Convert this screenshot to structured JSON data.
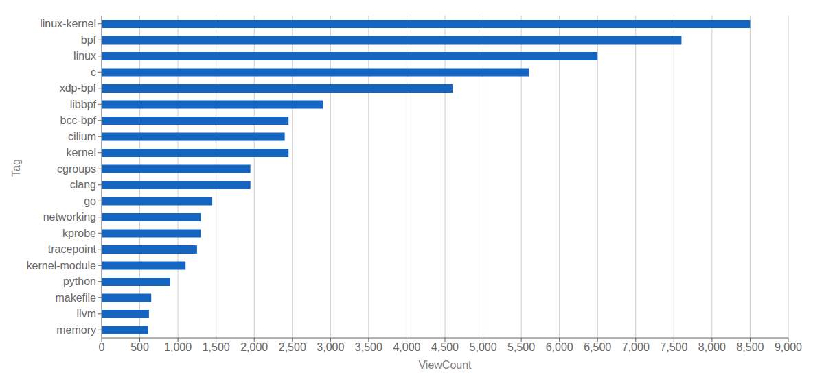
{
  "chart_data": {
    "type": "bar",
    "orientation": "horizontal",
    "categories": [
      "linux-kernel",
      "bpf",
      "linux",
      "c",
      "xdp-bpf",
      "libbpf",
      "bcc-bpf",
      "cilium",
      "kernel",
      "cgroups",
      "clang",
      "go",
      "networking",
      "kprobe",
      "tracepoint",
      "kernel-module",
      "python",
      "makefile",
      "llvm",
      "memory"
    ],
    "values": [
      8500,
      7600,
      6500,
      5600,
      4600,
      2900,
      2450,
      2400,
      2450,
      1950,
      1950,
      1450,
      1300,
      1300,
      1250,
      1100,
      900,
      650,
      620,
      610
    ],
    "color": "#1565C0",
    "xlabel": "ViewCount",
    "ylabel": "Tag",
    "xlim": [
      0,
      9000
    ],
    "xticks": [
      0,
      500,
      {
        "value": 1000,
        "label": "1,000"
      },
      {
        "value": 1500,
        "label": "1,500"
      },
      {
        "value": 2000,
        "label": "2,000"
      },
      {
        "value": 2500,
        "label": "2,500"
      },
      {
        "value": 3000,
        "label": "3,000"
      },
      {
        "value": 3500,
        "label": "3,500"
      },
      {
        "value": 4000,
        "label": "4,000"
      },
      {
        "value": 4500,
        "label": "4,500"
      },
      {
        "value": 5000,
        "label": "5,000"
      },
      {
        "value": 5500,
        "label": "5,500"
      },
      {
        "value": 6000,
        "label": "6,000"
      },
      {
        "value": 6500,
        "label": "6,500"
      },
      {
        "value": 7000,
        "label": "7,000"
      },
      {
        "value": 7500,
        "label": "7,500"
      },
      {
        "value": 8000,
        "label": "8,000"
      },
      {
        "value": 8500,
        "label": "8,500"
      },
      {
        "value": 9000,
        "label": "9,000"
      }
    ],
    "grid": true
  }
}
